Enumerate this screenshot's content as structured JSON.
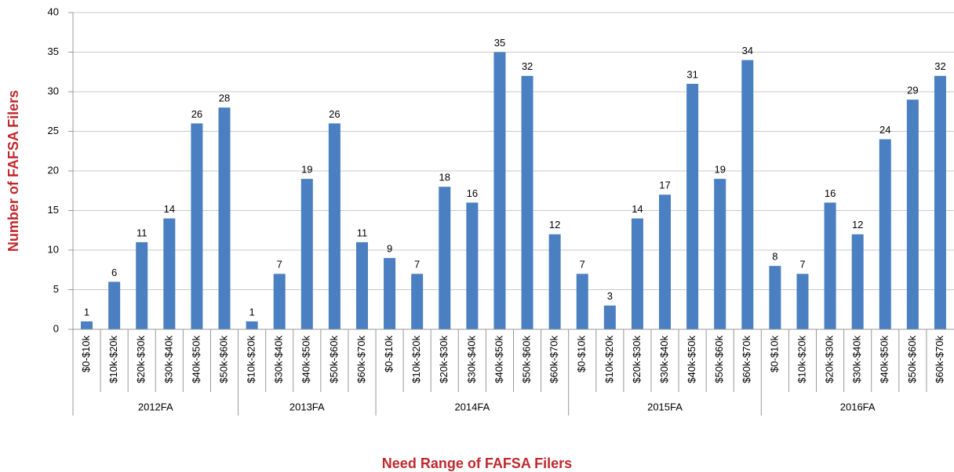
{
  "chart_data": {
    "type": "bar",
    "y_label": "Number of FAFSA Filers",
    "x_label": "Need Range of FAFSA Filers",
    "color": "#4a7fc1",
    "grid": true,
    "ylim": [
      0,
      40
    ],
    "yticks": [
      0,
      5,
      10,
      15,
      20,
      25,
      30,
      35,
      40
    ],
    "groups": [
      {
        "label": "2012FA",
        "categories": [
          "$0-$10k",
          "$10k-$20k",
          "$20k-$30k",
          "$30k-$40k",
          "$40k-$50k",
          "$50k-$60k"
        ],
        "values": [
          1,
          6,
          11,
          14,
          26,
          28
        ]
      },
      {
        "label": "2013FA",
        "categories": [
          "$10k-$20k",
          "$30k-$40k",
          "$40k-$50k",
          "$50k-$60k",
          "$60k-$70k"
        ],
        "values": [
          1,
          7,
          19,
          26,
          11
        ]
      },
      {
        "label": "2014FA",
        "categories": [
          "$0-$10k",
          "$10k-$20k",
          "$20k-$30k",
          "$30k-$40k",
          "$40k-$50k",
          "$50k-$60k",
          "$60k-$70k"
        ],
        "values": [
          9,
          7,
          18,
          16,
          35,
          32,
          12
        ]
      },
      {
        "label": "2015FA",
        "categories": [
          "$0-$10k",
          "$10k-$20k",
          "$20k-$30k",
          "$30k-$40k",
          "$40k-$50k",
          "$50k-$60k",
          "$60k-$70k"
        ],
        "values": [
          7,
          3,
          14,
          17,
          31,
          19,
          34
        ]
      },
      {
        "label": "2016FA",
        "categories": [
          "$0-$10k",
          "$10k-$20k",
          "$20k-$30k",
          "$30k-$40k",
          "$40k-$50k",
          "$50k-$60k",
          "$60k-$70k"
        ],
        "values": [
          8,
          7,
          16,
          12,
          24,
          29,
          32
        ]
      }
    ]
  }
}
